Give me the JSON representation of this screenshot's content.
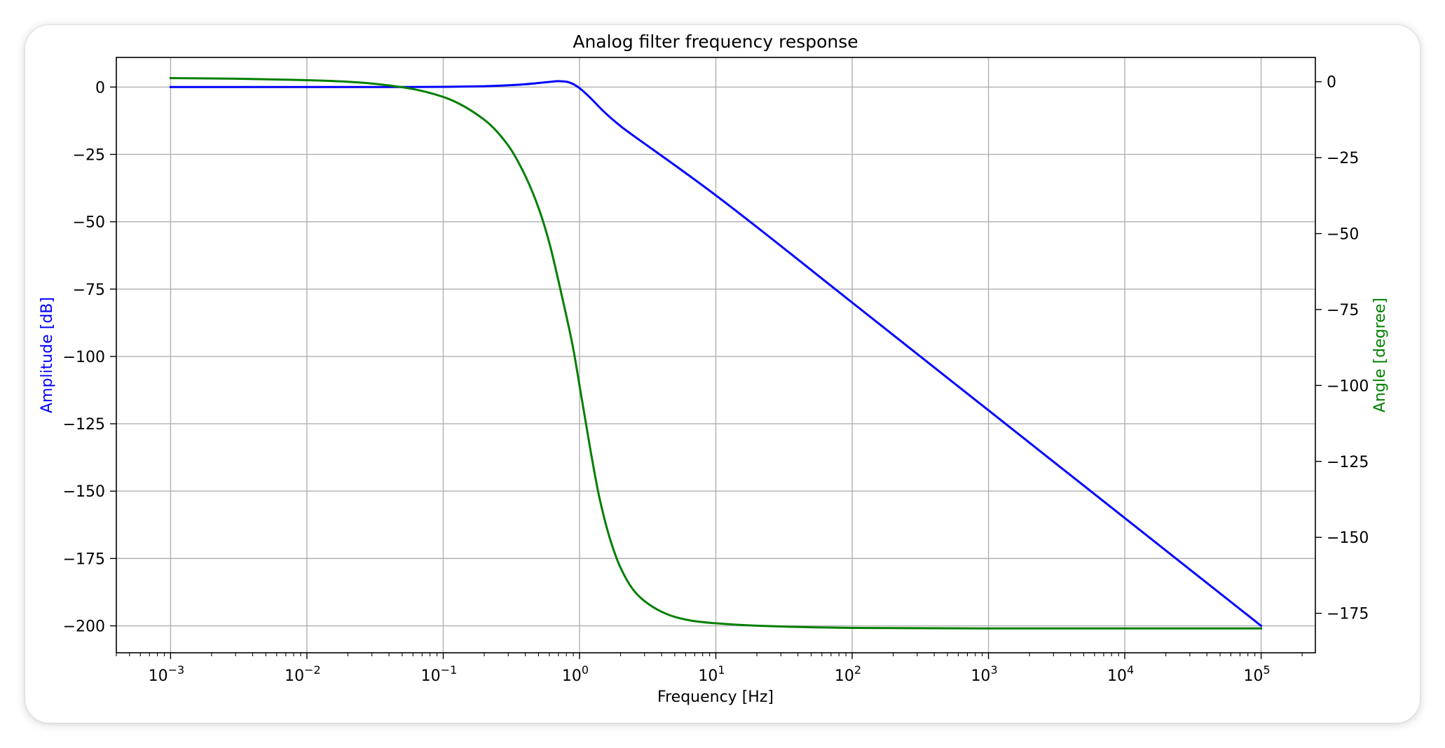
{
  "chart_data": {
    "type": "line",
    "title": "Analog filter frequency response",
    "xlabel": "Frequency [Hz]",
    "ylabel_left": "Amplitude [dB]",
    "ylabel_right": "Angle [degree]",
    "xscale": "log",
    "xlim": [
      0.0004,
      250000
    ],
    "ylim_left": [
      -210,
      11
    ],
    "ylim_right": [
      -188,
      8
    ],
    "grid": true,
    "x_ticks": [
      {
        "value": 0.001,
        "base": "10",
        "exp": "−3"
      },
      {
        "value": 0.01,
        "base": "10",
        "exp": "−2"
      },
      {
        "value": 0.1,
        "base": "10",
        "exp": "−1"
      },
      {
        "value": 1,
        "base": "10",
        "exp": "0"
      },
      {
        "value": 10,
        "base": "10",
        "exp": "1"
      },
      {
        "value": 100,
        "base": "10",
        "exp": "2"
      },
      {
        "value": 1000,
        "base": "10",
        "exp": "3"
      },
      {
        "value": 10000,
        "base": "10",
        "exp": "4"
      },
      {
        "value": 100000,
        "base": "10",
        "exp": "5"
      }
    ],
    "y_ticks_left": [
      {
        "value": 0,
        "label": "0"
      },
      {
        "value": -25,
        "label": "−25"
      },
      {
        "value": -50,
        "label": "−50"
      },
      {
        "value": -75,
        "label": "−75"
      },
      {
        "value": -100,
        "label": "−100"
      },
      {
        "value": -125,
        "label": "−125"
      },
      {
        "value": -150,
        "label": "−150"
      },
      {
        "value": -175,
        "label": "−175"
      },
      {
        "value": -200,
        "label": "−200"
      }
    ],
    "y_ticks_right": [
      {
        "value": 0,
        "label": "0"
      },
      {
        "value": -25,
        "label": "−25"
      },
      {
        "value": -50,
        "label": "−50"
      },
      {
        "value": -75,
        "label": "−75"
      },
      {
        "value": -100,
        "label": "−100"
      },
      {
        "value": -125,
        "label": "−125"
      },
      {
        "value": -150,
        "label": "−150"
      },
      {
        "value": -175,
        "label": "−175"
      }
    ],
    "series": [
      {
        "axis": "left",
        "color": "#0000ff",
        "x": [
          0.001,
          0.01,
          0.05,
          0.1,
          0.2,
          0.3,
          0.4,
          0.5,
          0.6,
          0.7,
          0.8,
          0.9,
          1.0,
          1.1,
          1.2,
          1.5,
          2,
          3,
          5,
          10,
          100,
          1000,
          10000,
          100000
        ],
        "y": [
          0,
          0,
          0.02,
          0.08,
          0.3,
          0.65,
          1.05,
          1.5,
          1.9,
          2.2,
          2.0,
          1.1,
          -0.4,
          -2.2,
          -4.0,
          -9.0,
          -14.5,
          -21.0,
          -29.0,
          -40.2,
          -80.0,
          -120.0,
          -160.0,
          -200.0
        ]
      },
      {
        "axis": "right",
        "color": "#007f00",
        "x": [
          0.001,
          0.003,
          0.01,
          0.02,
          0.05,
          0.1,
          0.2,
          0.3,
          0.4,
          0.5,
          0.6,
          0.7,
          0.8,
          0.9,
          1.0,
          1.1,
          1.2,
          1.4,
          1.7,
          2.0,
          2.5,
          3.0,
          4.0,
          5.0,
          7.0,
          10,
          20,
          50,
          100,
          1000,
          10000,
          100000
        ],
        "y": [
          1.2,
          1.0,
          0.5,
          0.0,
          -1.8,
          -5.0,
          -12.5,
          -21.0,
          -31.0,
          -41.5,
          -53.0,
          -65.5,
          -77.0,
          -88.0,
          -100.0,
          -111.0,
          -121.0,
          -137.0,
          -151.5,
          -160.0,
          -167.5,
          -171.0,
          -174.5,
          -176.2,
          -177.6,
          -178.3,
          -179.1,
          -179.6,
          -179.8,
          -180.0,
          -180.0,
          -180.0
        ]
      }
    ]
  }
}
